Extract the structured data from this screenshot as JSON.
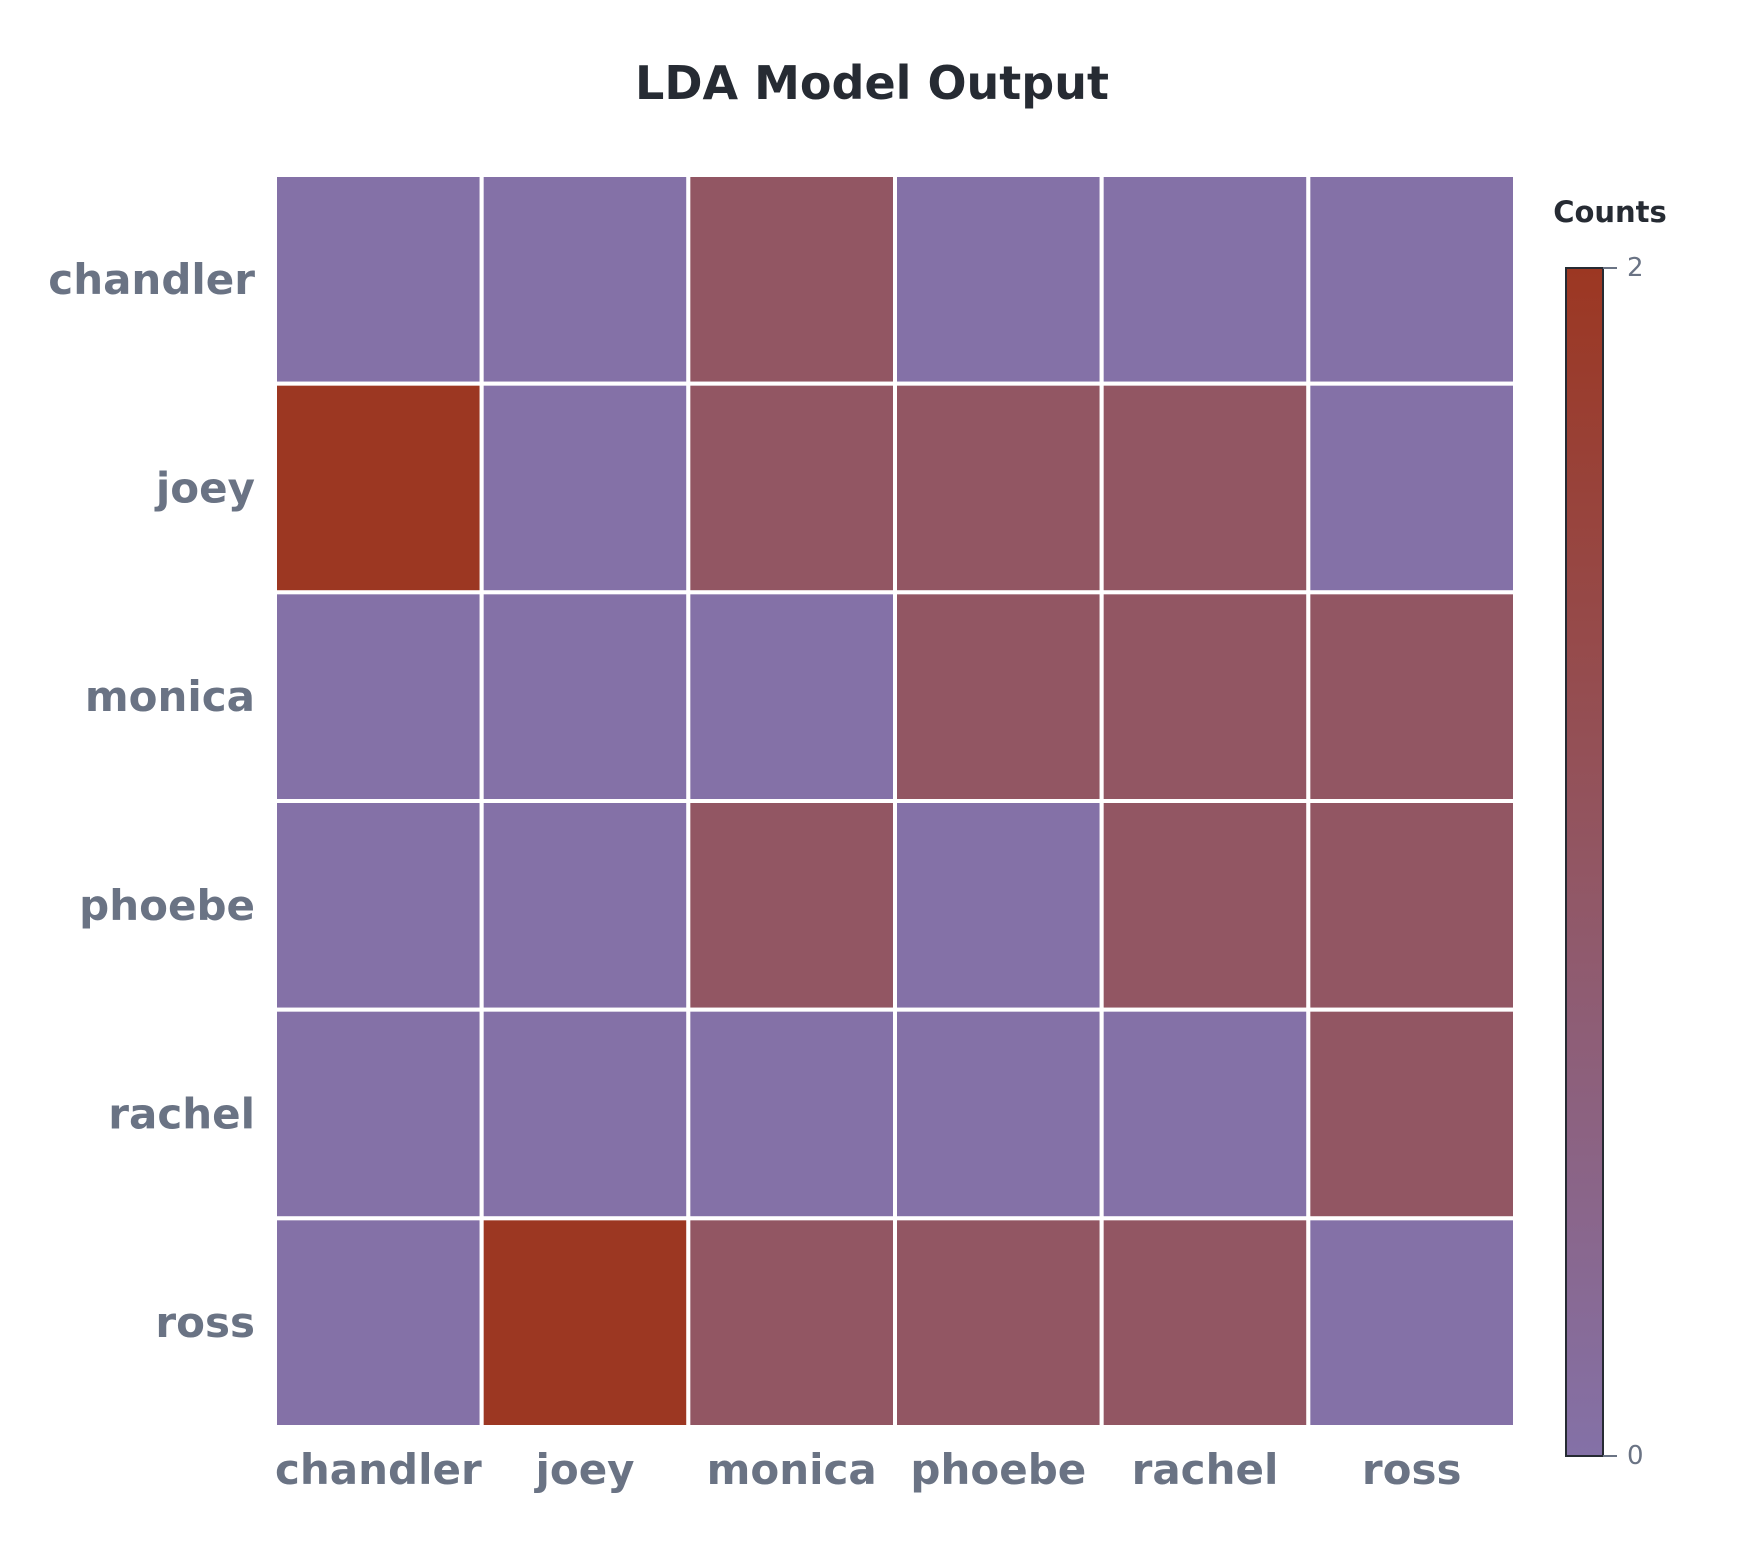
{
  "chart_data": {
    "type": "heatmap",
    "title": "LDA Model Output",
    "x_categories": [
      "chandler",
      "joey",
      "monica",
      "phoebe",
      "rachel",
      "ross"
    ],
    "y_categories": [
      "chandler",
      "joey",
      "monica",
      "phoebe",
      "rachel",
      "ross"
    ],
    "values": [
      [
        0,
        0,
        1,
        0,
        0,
        0
      ],
      [
        2,
        0,
        1,
        1,
        1,
        0
      ],
      [
        0,
        0,
        0,
        1,
        1,
        1
      ],
      [
        0,
        0,
        1,
        0,
        1,
        1
      ],
      [
        0,
        0,
        0,
        0,
        0,
        1
      ],
      [
        0,
        2,
        1,
        1,
        1,
        0
      ]
    ],
    "colorbar": {
      "title": "Counts",
      "min": 0,
      "max": 2,
      "ticks": [
        0,
        2
      ],
      "tick_labels": [
        "0",
        "2"
      ],
      "color_low": "#8471a7",
      "color_mid": "#925663",
      "color_high": "#9c3722"
    },
    "cell_border_color": "#ffffff"
  }
}
